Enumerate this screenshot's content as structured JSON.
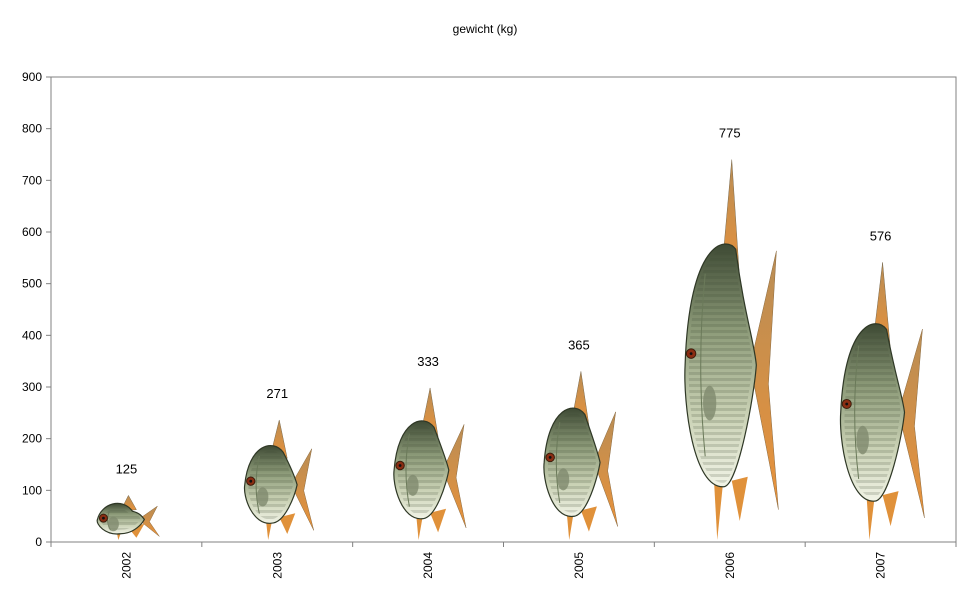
{
  "chart_data": {
    "type": "bar",
    "title": "gewicht (kg)",
    "xlabel": "",
    "ylabel": "",
    "categories": [
      "2002",
      "2003",
      "2004",
      "2005",
      "2006",
      "2007"
    ],
    "values": [
      125,
      271,
      333,
      365,
      775,
      576
    ],
    "ylim": [
      0,
      900
    ],
    "yticks": [
      0,
      100,
      200,
      300,
      400,
      500,
      600,
      700,
      800,
      900
    ],
    "grid": false,
    "legend": "none",
    "bar_style": "fish-icon"
  },
  "colors": {
    "axis": "#808080",
    "fish_back": "#4f5e43",
    "fish_body": "#a9b593",
    "fish_belly": "#e8ecd8",
    "fin": "#e0913a"
  }
}
